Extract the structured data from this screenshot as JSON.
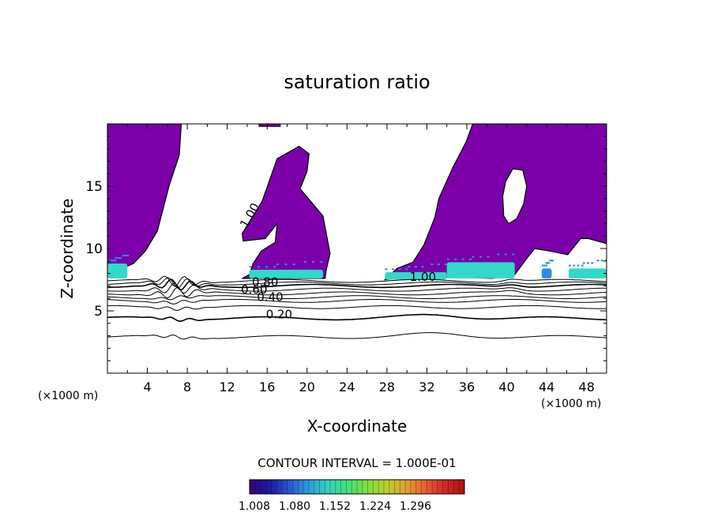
{
  "chart_data": {
    "type": "contour",
    "title": "saturation ratio",
    "xlabel": "X-coordinate",
    "ylabel": "Z-coordinate",
    "x_unit_left": "(×1000 m)",
    "x_unit_right": "(×1000 m)",
    "xlim": [
      0,
      50
    ],
    "ylim": [
      0,
      20
    ],
    "x_ticks": [
      4,
      8,
      12,
      16,
      20,
      24,
      28,
      32,
      36,
      40,
      44,
      48
    ],
    "y_ticks": [
      5,
      10,
      15
    ],
    "contour_interval_text": "CONTOUR INTERVAL = 1.000E-01",
    "contour_labels": [
      {
        "text": "1.00",
        "x": 14.6,
        "y": 12.5
      },
      {
        "text": "1.00",
        "x": 31.6,
        "y": 7.4
      },
      {
        "text": "0.80",
        "x": 15.8,
        "y": 7.0
      },
      {
        "text": "0.60",
        "x": 14.7,
        "y": 6.4
      },
      {
        "text": "0.40",
        "x": 16.3,
        "y": 5.8
      },
      {
        "text": "0.20",
        "x": 17.2,
        "y": 4.4
      }
    ],
    "contour_levels_lines": [
      {
        "level": 0.1,
        "base": 2.9
      },
      {
        "level": 0.2,
        "base": 4.4
      },
      {
        "level": 0.3,
        "base": 5.3
      },
      {
        "level": 0.4,
        "base": 5.8
      },
      {
        "level": 0.5,
        "base": 6.1
      },
      {
        "level": 0.6,
        "base": 6.4
      },
      {
        "level": 0.7,
        "base": 6.7
      },
      {
        "level": 0.8,
        "base": 7.0
      },
      {
        "level": 0.9,
        "base": 7.2
      },
      {
        "level": 1.0,
        "base": 7.4
      }
    ],
    "colorbar": {
      "tick_labels": [
        "1.008",
        "1.080",
        "1.152",
        "1.224",
        "1.296"
      ],
      "colors": [
        "#3a0078",
        "#1a1aa0",
        "#2a55d0",
        "#2e9ae0",
        "#33d0c0",
        "#44e07a",
        "#7ae040",
        "#b8d030",
        "#e0a030",
        "#e86030",
        "#d02828",
        "#b01010"
      ]
    },
    "fill_colors": {
      "supersaturated": "#7b00aa",
      "high": "#33d8c8",
      "higher": "#2f8ce0"
    },
    "supersaturated_regions": [
      [
        [
          0,
          8.2
        ],
        [
          1.2,
          8.3
        ],
        [
          2.6,
          8.8
        ],
        [
          3.8,
          9.8
        ],
        [
          5.0,
          11.4
        ],
        [
          6.2,
          15.1
        ],
        [
          7.2,
          17.5
        ],
        [
          7.4,
          20
        ],
        [
          0,
          20
        ]
      ],
      [
        [
          15.2,
          20
        ],
        [
          17.3,
          20
        ],
        [
          17.3,
          19.8
        ],
        [
          15.2,
          19.8
        ]
      ],
      [
        [
          13.5,
          7.6
        ],
        [
          18.0,
          7.6
        ],
        [
          21.8,
          7.6
        ],
        [
          21.9,
          8.2
        ],
        [
          22.3,
          9.6
        ],
        [
          21.6,
          12.6
        ],
        [
          19.3,
          14.8
        ],
        [
          20.0,
          16.2
        ],
        [
          20.2,
          17.6
        ],
        [
          19.2,
          18.2
        ],
        [
          17.0,
          17.2
        ],
        [
          15.5,
          13.8
        ],
        [
          13.5,
          11.2
        ],
        [
          13.6,
          10.6
        ],
        [
          15.8,
          10.8
        ],
        [
          17.0,
          12.0
        ],
        [
          16.8,
          10.5
        ],
        [
          15.4,
          9.8
        ],
        [
          14.6,
          8.8
        ],
        [
          14.2,
          7.9
        ]
      ],
      [
        [
          27.8,
          7.5
        ],
        [
          30.5,
          7.7
        ],
        [
          35.0,
          7.7
        ],
        [
          38.5,
          7.6
        ],
        [
          40.8,
          7.9
        ],
        [
          42.0,
          9.2
        ],
        [
          42.8,
          10.0
        ],
        [
          44.3,
          9.8
        ],
        [
          46.1,
          9.5
        ],
        [
          47.4,
          10.8
        ],
        [
          48.2,
          10.8
        ],
        [
          50,
          10.4
        ],
        [
          50,
          20
        ],
        [
          36.6,
          20
        ],
        [
          35.9,
          18.5
        ],
        [
          34.6,
          16.5
        ],
        [
          33.2,
          14.0
        ],
        [
          32.8,
          12.5
        ],
        [
          31.7,
          10.3
        ],
        [
          30.6,
          8.9
        ],
        [
          29.0,
          8.4
        ]
      ]
    ],
    "unsaturated_holes": [
      [
        [
          39.6,
          14.2
        ],
        [
          39.9,
          15.4
        ],
        [
          40.6,
          16.4
        ],
        [
          41.6,
          16.3
        ],
        [
          42.0,
          15.0
        ],
        [
          41.7,
          13.6
        ],
        [
          41.0,
          12.4
        ],
        [
          40.2,
          12.0
        ],
        [
          39.7,
          12.6
        ]
      ]
    ],
    "bright_bands": [
      {
        "x0": 0.0,
        "x1": 2.0,
        "y0": 7.6,
        "y1": 8.8,
        "color": "#33d8c8"
      },
      {
        "x0": 14.2,
        "x1": 21.6,
        "y0": 7.6,
        "y1": 8.3,
        "color": "#33d8c8"
      },
      {
        "x0": 27.8,
        "x1": 34.0,
        "y0": 7.5,
        "y1": 8.1,
        "color": "#33d8c8"
      },
      {
        "x0": 34.0,
        "x1": 40.8,
        "y0": 7.6,
        "y1": 8.9,
        "color": "#33d8c8"
      },
      {
        "x0": 43.5,
        "x1": 44.5,
        "y0": 7.6,
        "y1": 8.4,
        "color": "#2f8ce0"
      },
      {
        "x0": 46.2,
        "x1": 50.0,
        "y0": 7.6,
        "y1": 8.4,
        "color": "#33d8c8"
      }
    ]
  }
}
